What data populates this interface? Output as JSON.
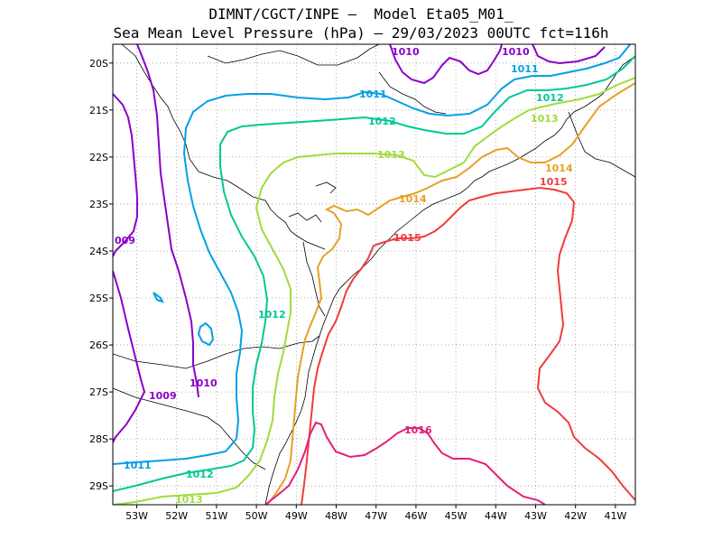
{
  "title": {
    "line1": "DIMNT/CGCT/INPE –  Model Eta05_M01_",
    "line2": "Sea Mean Level Pressure (hPa) – 29/03/2023 00UTC fct=116h"
  },
  "chart_data": {
    "type": "contour",
    "variable": "Sea Mean Level Pressure",
    "units": "hPa",
    "run": "29/03/2023 00UTC",
    "forecast": "fct=116h",
    "lon_range": [
      -53.6,
      -40.5
    ],
    "lat_range": [
      -19.6,
      -29.4
    ],
    "x_ticks": [
      "53W",
      "52W",
      "51W",
      "50W",
      "49W",
      "48W",
      "47W",
      "46W",
      "45W",
      "44W",
      "43W",
      "42W",
      "41W"
    ],
    "y_ticks": [
      "20S",
      "21S",
      "22S",
      "23S",
      "24S",
      "25S",
      "26S",
      "27S",
      "28S",
      "29S"
    ],
    "grid": true,
    "contours": [
      {
        "level": 1009,
        "color": "#8a00c8",
        "labels": [
          "009",
          "1009"
        ]
      },
      {
        "level": 1010,
        "color": "#8a00c8",
        "labels": [
          "1010",
          "1010",
          "1010"
        ]
      },
      {
        "level": 1011,
        "color": "#00a0e6",
        "labels": [
          "1011",
          "1011",
          "1011"
        ]
      },
      {
        "level": 1012,
        "color": "#00c896",
        "labels": [
          "1012",
          "1012",
          "1012",
          "1012"
        ]
      },
      {
        "level": 1013,
        "color": "#a0dc3c",
        "labels": [
          "1013",
          "1013",
          "1013"
        ]
      },
      {
        "level": 1014,
        "color": "#e6a028",
        "labels": [
          "1014",
          "1014"
        ]
      },
      {
        "level": 1015,
        "color": "#f03c3c",
        "labels": [
          "1015",
          "1015"
        ]
      },
      {
        "level": 1016,
        "color": "#e61e78",
        "labels": [
          "1016"
        ]
      }
    ]
  }
}
